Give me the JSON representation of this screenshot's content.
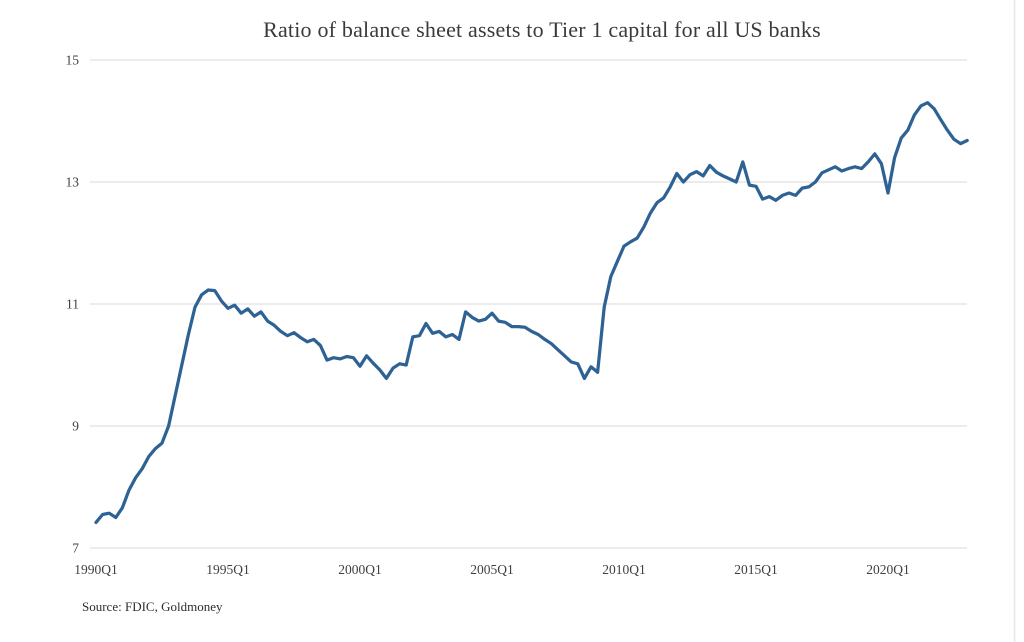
{
  "source_note": "Source: FDIC, Goldmoney",
  "colors": {
    "line": "#2e6294",
    "gridline": "#d9d9d9",
    "title_text": "#3a3a3a",
    "tick_text": "#3f3f3f",
    "frame_line": "#e8e8e8",
    "background": "#ffffff"
  },
  "chart_data": {
    "type": "line",
    "title": "Ratio of balance sheet assets to Tier 1 capital for all US banks",
    "xlabel": "",
    "ylabel": "",
    "grid": "horizontal-only",
    "legend": "none",
    "ylim": [
      7,
      15
    ],
    "y_ticks": [
      15,
      13,
      11,
      9,
      7
    ],
    "x_tick_labels": [
      "1990Q1",
      "1995Q1",
      "2000Q1",
      "2005Q1",
      "2010Q1",
      "2015Q1",
      "2020Q1"
    ],
    "x_start": "1990Q1",
    "x_end": "2023Q1",
    "x_frequency": "quarterly",
    "values": [
      7.42,
      7.55,
      7.57,
      7.5,
      7.66,
      7.95,
      8.15,
      8.3,
      8.5,
      8.63,
      8.72,
      9.0,
      9.5,
      10.0,
      10.5,
      10.95,
      11.15,
      11.23,
      11.22,
      11.05,
      10.93,
      10.98,
      10.85,
      10.92,
      10.8,
      10.87,
      10.72,
      10.65,
      10.55,
      10.48,
      10.53,
      10.45,
      10.38,
      10.42,
      10.32,
      10.08,
      10.12,
      10.1,
      10.14,
      10.12,
      9.98,
      10.15,
      10.03,
      9.92,
      9.78,
      9.95,
      10.02,
      10.0,
      10.46,
      10.48,
      10.68,
      10.52,
      10.55,
      10.46,
      10.5,
      10.42,
      10.87,
      10.78,
      10.72,
      10.75,
      10.85,
      10.72,
      10.7,
      10.63,
      10.63,
      10.62,
      10.55,
      10.5,
      10.42,
      10.35,
      10.25,
      10.15,
      10.05,
      10.02,
      9.78,
      9.97,
      9.88,
      10.95,
      11.45,
      11.7,
      11.95,
      12.02,
      12.08,
      12.26,
      12.49,
      12.66,
      12.74,
      12.92,
      13.14,
      13.0,
      13.12,
      13.17,
      13.1,
      13.27,
      13.16,
      13.1,
      13.05,
      13.0,
      13.33,
      12.95,
      12.93,
      12.72,
      12.76,
      12.7,
      12.78,
      12.82,
      12.78,
      12.9,
      12.92,
      13.0,
      13.15,
      13.2,
      13.25,
      13.18,
      13.22,
      13.25,
      13.22,
      13.33,
      13.46,
      13.3,
      12.82,
      13.4,
      13.72,
      13.85,
      14.1,
      14.25,
      14.3,
      14.2,
      14.02,
      13.85,
      13.7,
      13.63,
      13.68
    ]
  }
}
